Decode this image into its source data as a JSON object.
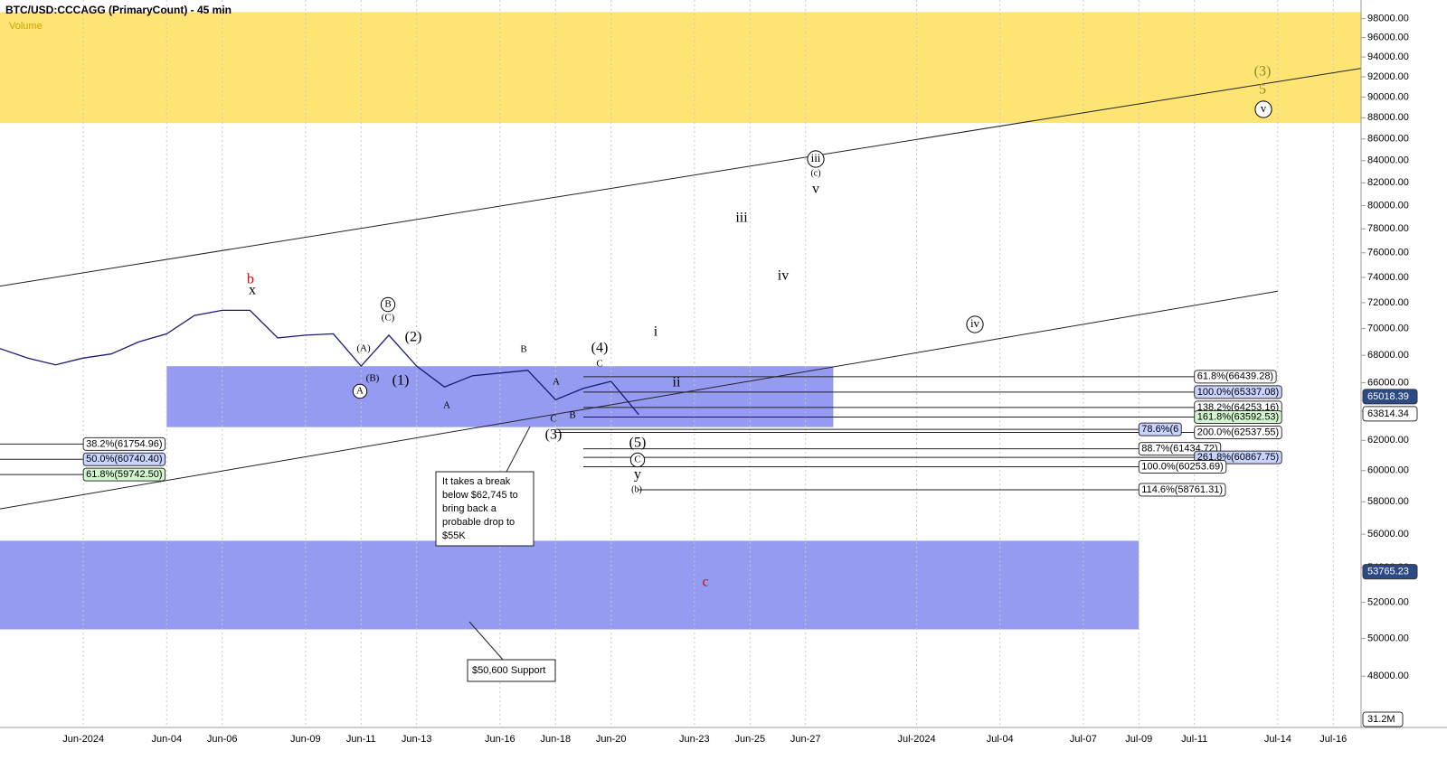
{
  "chart_data": {
    "type": "line",
    "title": "BTC/USD:CCCAGG (PrimaryCount) - 45 min",
    "subtitle": "Volume",
    "log": true,
    "grid": "x",
    "xlim": [
      "2024-05-29",
      "2024-07-17"
    ],
    "ylim": [
      45400,
      100000
    ],
    "xticks": [
      {
        "value": "2024-06-01",
        "label": "Jun-2024"
      },
      {
        "value": "2024-06-04",
        "label": "Jun-04"
      },
      {
        "value": "2024-06-06",
        "label": "Jun-06"
      },
      {
        "value": "2024-06-09",
        "label": "Jun-09"
      },
      {
        "value": "2024-06-11",
        "label": "Jun-11"
      },
      {
        "value": "2024-06-13",
        "label": "Jun-13"
      },
      {
        "value": "2024-06-16",
        "label": "Jun-16"
      },
      {
        "value": "2024-06-18",
        "label": "Jun-18"
      },
      {
        "value": "2024-06-20",
        "label": "Jun-20"
      },
      {
        "value": "2024-06-23",
        "label": "Jun-23"
      },
      {
        "value": "2024-06-25",
        "label": "Jun-25"
      },
      {
        "value": "2024-06-27",
        "label": "Jun-27"
      },
      {
        "value": "2024-07-01",
        "label": "Jul-2024"
      },
      {
        "value": "2024-07-04",
        "label": "Jul-04"
      },
      {
        "value": "2024-07-07",
        "label": "Jul-07"
      },
      {
        "value": "2024-07-09",
        "label": "Jul-09"
      },
      {
        "value": "2024-07-11",
        "label": "Jul-11"
      },
      {
        "value": "2024-07-14",
        "label": "Jul-14"
      },
      {
        "value": "2024-07-16",
        "label": "Jul-16"
      }
    ],
    "yticks": [
      {
        "value": 48000,
        "label": "48000.00"
      },
      {
        "value": 50000,
        "label": "50000.00"
      },
      {
        "value": 52000,
        "label": "52000.00"
      },
      {
        "value": 54000,
        "label": "54000.00"
      },
      {
        "value": 56000,
        "label": "56000.00"
      },
      {
        "value": 58000,
        "label": "58000.00"
      },
      {
        "value": 60000,
        "label": "60000.00"
      },
      {
        "value": 62000,
        "label": "62000.00"
      },
      {
        "value": 64000,
        "label": "64000.00"
      },
      {
        "value": 66000,
        "label": "66000.00"
      },
      {
        "value": 68000,
        "label": "68000.00"
      },
      {
        "value": 70000,
        "label": "70000.00"
      },
      {
        "value": 72000,
        "label": "72000.00"
      },
      {
        "value": 74000,
        "label": "74000.00"
      },
      {
        "value": 76000,
        "label": "76000.00"
      },
      {
        "value": 78000,
        "label": "78000.00"
      },
      {
        "value": 80000,
        "label": "80000.00"
      },
      {
        "value": 82000,
        "label": "82000.00"
      },
      {
        "value": 84000,
        "label": "84000.00"
      },
      {
        "value": 86000,
        "label": "86000.00"
      },
      {
        "value": 88000,
        "label": "88000.00"
      },
      {
        "value": 90000,
        "label": "90000.00"
      },
      {
        "value": 92000,
        "label": "92000.00"
      },
      {
        "value": 94000,
        "label": "94000.00"
      },
      {
        "value": 96000,
        "label": "96000.00"
      },
      {
        "value": 98000,
        "label": "98000.00"
      }
    ],
    "x": [
      "2024-05-29",
      "2024-05-30",
      "2024-05-31",
      "2024-06-01",
      "2024-06-02",
      "2024-06-03",
      "2024-06-04",
      "2024-06-05",
      "2024-06-06",
      "2024-06-07",
      "2024-06-08",
      "2024-06-09",
      "2024-06-10",
      "2024-06-11",
      "2024-06-12",
      "2024-06-13",
      "2024-06-14",
      "2024-06-15",
      "2024-06-16",
      "2024-06-17",
      "2024-06-18",
      "2024-06-19",
      "2024-06-20",
      "2024-06-21"
    ],
    "series": [
      {
        "name": "BTC/USD",
        "color": "#1a1a7a",
        "values": [
          68500,
          67800,
          67300,
          67800,
          68100,
          69000,
          69600,
          71000,
          71400,
          71400,
          69300,
          69500,
          69600,
          67200,
          69500,
          67200,
          65700,
          66500,
          66700,
          66900,
          64800,
          65600,
          66100,
          63750
        ]
      }
    ],
    "zones": [
      {
        "x": [
          "2024-05-29",
          "2024-07-17"
        ],
        "y": [
          87500,
          98700
        ],
        "color": "#fde36b"
      },
      {
        "x": [
          "2024-06-04",
          "2024-06-28"
        ],
        "y": [
          62900,
          67200
        ],
        "color": "#8f96f0"
      },
      {
        "x": [
          "2024-05-29",
          "2024-07-09"
        ],
        "y": [
          50500,
          55600
        ],
        "color": "#8f96f0"
      }
    ],
    "trendlines": [
      {
        "x": [
          "2024-05-29",
          "2024-07-17"
        ],
        "y": [
          73300,
          92850
        ]
      },
      {
        "x": [
          "2024-05-29",
          "2024-07-14"
        ],
        "y": [
          57560,
          72900
        ]
      }
    ],
    "levels": [
      {
        "x": [
          "2024-06-19",
          "2024-07-11"
        ],
        "value": 66439.28,
        "label": "61.8%(66439.28)",
        "bg": "#ffffff"
      },
      {
        "x": [
          "2024-06-19",
          "2024-07-11"
        ],
        "value": 65337.08,
        "label": "100.0%(65337.08)",
        "bg": "#c9d3ff"
      },
      {
        "x": [
          "2024-06-19",
          "2024-07-11"
        ],
        "value": 64253.16,
        "label": "138.2%(64253.16)",
        "bg": "#ffffff"
      },
      {
        "x": [
          "2024-06-19",
          "2024-07-11"
        ],
        "value": 63592.53,
        "label": "161.8%(63592.53)",
        "bg": "#d3f5cf"
      },
      {
        "x": [
          "2024-06-18",
          "2024-07-11"
        ],
        "value": 62537.55,
        "label": "200.0%(62537.55)",
        "bg": "#ffffff"
      },
      {
        "x": [
          "2024-06-18",
          "2024-07-09"
        ],
        "value": 62745,
        "label": "78.6%(6",
        "bg": "#c9d3ff"
      },
      {
        "x": [
          "2024-06-19",
          "2024-07-09"
        ],
        "value": 61434.72,
        "label": "88.7%(61434.72)",
        "bg": "#ffffff"
      },
      {
        "x": [
          "2024-06-19",
          "2024-07-11"
        ],
        "value": 60867.75,
        "label": "261.8%(60867.75)",
        "bg": "#c9d3ff"
      },
      {
        "x": [
          "2024-06-19",
          "2024-07-09"
        ],
        "value": 60253.69,
        "label": "100.0%(60253.69)",
        "bg": "#ffffff"
      },
      {
        "x": [
          "2024-06-21",
          "2024-07-09"
        ],
        "value": 58761.31,
        "label": "114.6%(58761.31)",
        "bg": "#ffffff"
      },
      {
        "x": [
          "2024-05-29",
          "2024-06-01"
        ],
        "value": 61754.96,
        "label": "38.2%(61754.96)",
        "bg": "#ffffff"
      },
      {
        "x": [
          "2024-05-29",
          "2024-06-01"
        ],
        "value": 60740.4,
        "label": "50.0%(60740.40)",
        "bg": "#c9d3ff"
      },
      {
        "x": [
          "2024-05-29",
          "2024-06-01"
        ],
        "value": 59742.5,
        "label": "61.8%(59742.50)",
        "bg": "#d3f5cf"
      }
    ],
    "price_badges": [
      {
        "value": 65018.39,
        "bg": "#2c4a86",
        "color": "#ffffff"
      },
      {
        "value": 63814.34,
        "bg": "#ffffff",
        "color": "#000000"
      },
      {
        "value": 53765.23,
        "bg": "#2c4a86",
        "color": "#ffffff"
      }
    ],
    "volume_last": "31.2M",
    "wave_labels": [
      "b",
      "x",
      "B",
      "(C)",
      "(A)",
      "(B)",
      "A",
      "(2)",
      "(1)",
      "A",
      "B",
      "(4)",
      "C",
      "A",
      "C",
      "B",
      "(3)",
      "(5)",
      "C",
      "y",
      "(b)",
      "i",
      "ii",
      "iii",
      "iv",
      "iii",
      "(c)",
      "v",
      "iv",
      "(3)",
      "5",
      "v",
      "c"
    ],
    "callouts": [
      {
        "lines": [
          "It takes a break",
          "below $62,745 to",
          "bring back a",
          "probable drop to",
          "$55K"
        ]
      },
      {
        "lines": [
          "$50,600 Support"
        ]
      }
    ]
  }
}
